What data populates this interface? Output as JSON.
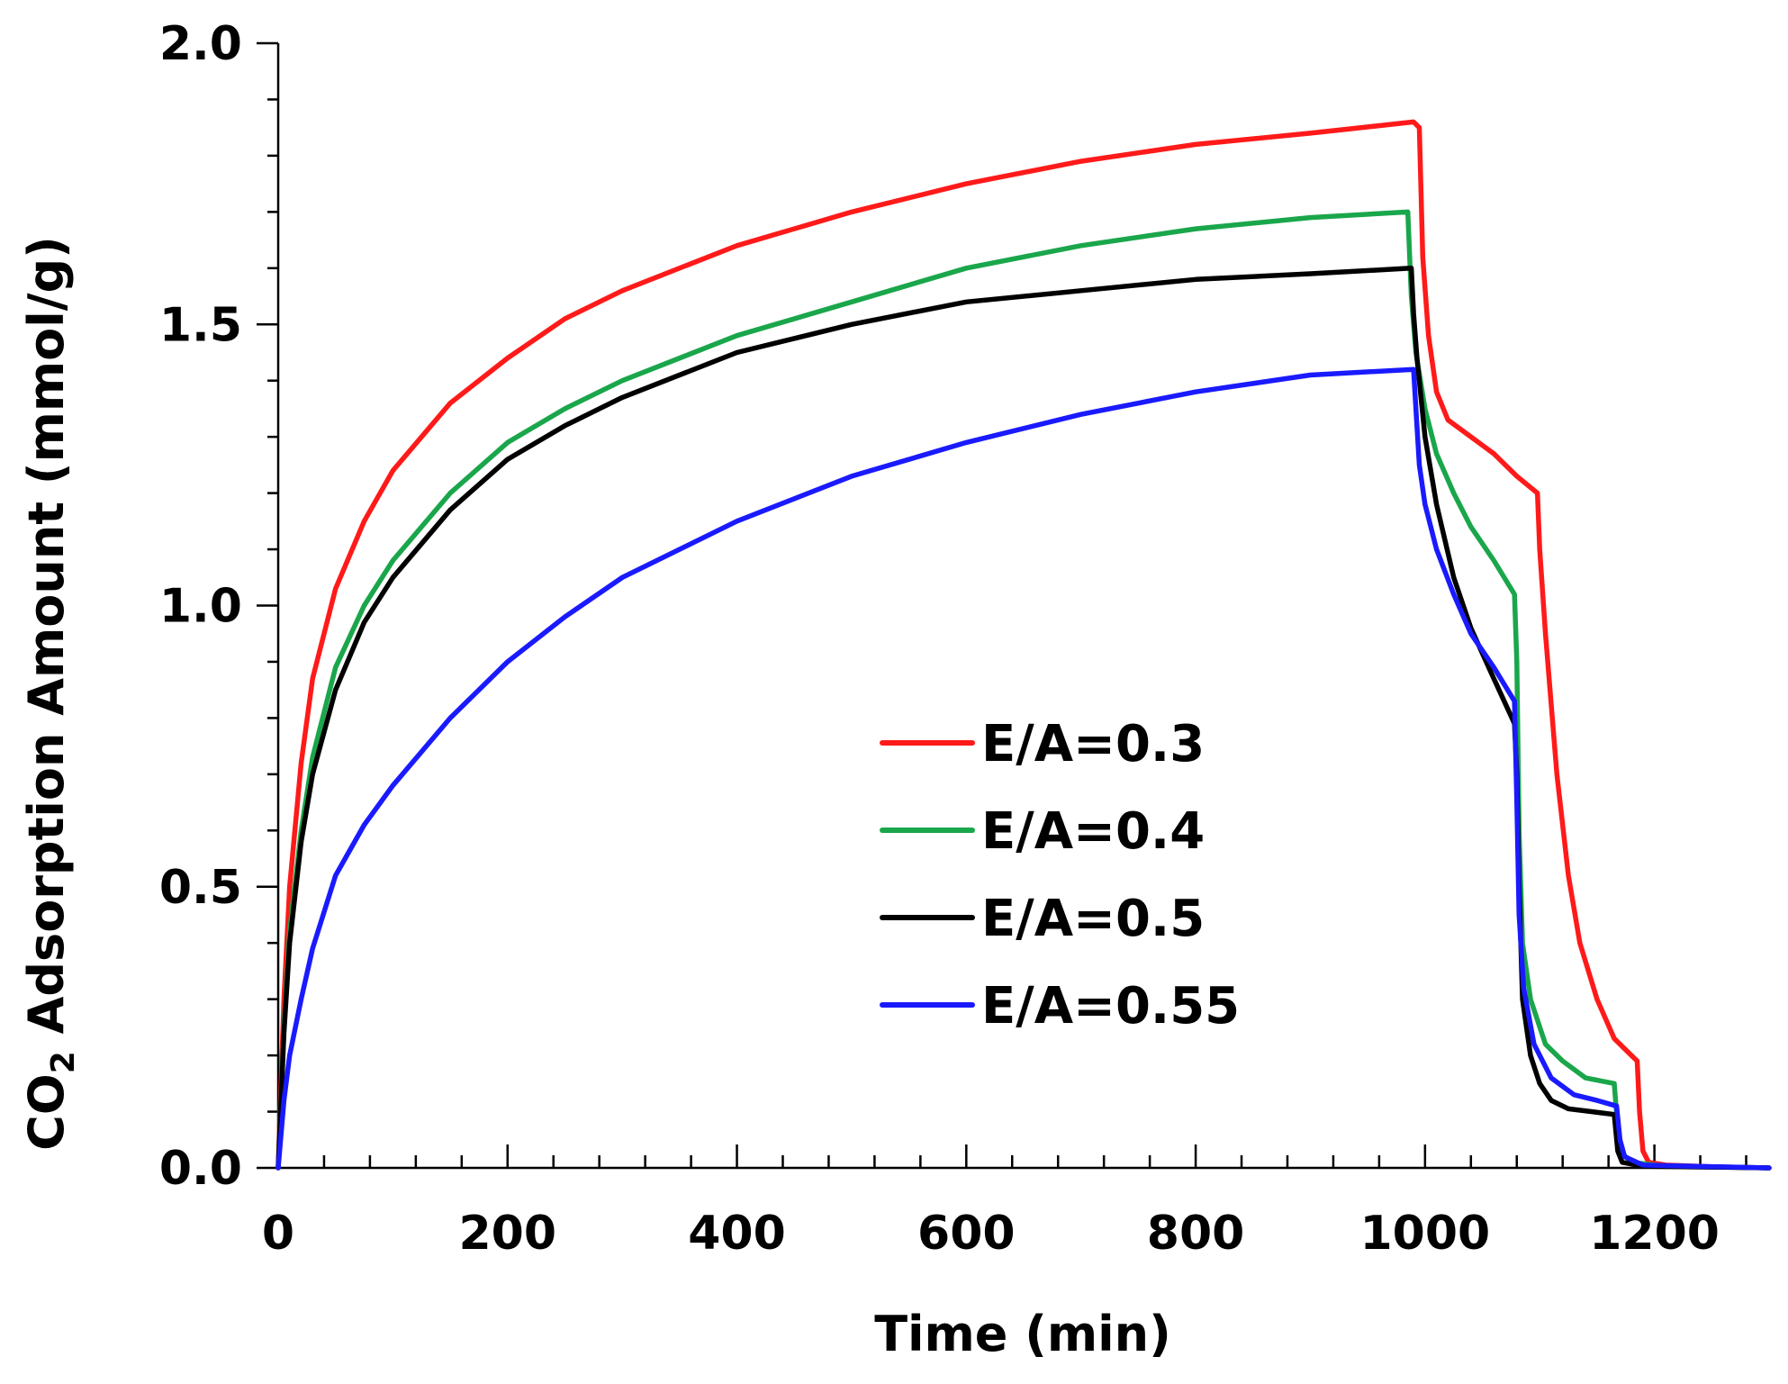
{
  "chart_data": {
    "type": "line",
    "title": "",
    "xlabel": "Time (min)",
    "ylabel_main": "CO",
    "ylabel_sub": "2",
    "ylabel_rest": " Adsorption Amount (mmol/g)",
    "xlim": [
      0,
      1300
    ],
    "ylim": [
      0,
      2.0
    ],
    "x_ticks": [
      0,
      200,
      400,
      600,
      800,
      1000,
      1200
    ],
    "x_tick_labels": [
      "0",
      "200",
      "400",
      "600",
      "800",
      "1000",
      "1200"
    ],
    "x_minor_step": 40,
    "y_ticks": [
      0,
      0.5,
      1.0,
      1.5,
      2.0
    ],
    "y_tick_labels": [
      "0.0",
      "0.5",
      "1.0",
      "1.5",
      "2.0"
    ],
    "y_minor_step": 0.1,
    "grid": false,
    "legend_position": "center-right",
    "series": [
      {
        "name": "E/A=0.3",
        "color": "#ff1a1a",
        "points": [
          [
            0,
            0
          ],
          [
            5,
            0.3
          ],
          [
            10,
            0.5
          ],
          [
            20,
            0.72
          ],
          [
            30,
            0.87
          ],
          [
            50,
            1.03
          ],
          [
            75,
            1.15
          ],
          [
            100,
            1.24
          ],
          [
            150,
            1.36
          ],
          [
            200,
            1.44
          ],
          [
            250,
            1.51
          ],
          [
            300,
            1.56
          ],
          [
            400,
            1.64
          ],
          [
            500,
            1.7
          ],
          [
            600,
            1.75
          ],
          [
            700,
            1.79
          ],
          [
            800,
            1.82
          ],
          [
            900,
            1.84
          ],
          [
            990,
            1.86
          ],
          [
            995,
            1.85
          ],
          [
            998,
            1.62
          ],
          [
            1003,
            1.48
          ],
          [
            1010,
            1.38
          ],
          [
            1020,
            1.33
          ],
          [
            1040,
            1.3
          ],
          [
            1060,
            1.27
          ],
          [
            1080,
            1.23
          ],
          [
            1098,
            1.2
          ],
          [
            1100,
            1.1
          ],
          [
            1105,
            0.95
          ],
          [
            1115,
            0.7
          ],
          [
            1125,
            0.52
          ],
          [
            1135,
            0.4
          ],
          [
            1150,
            0.3
          ],
          [
            1165,
            0.23
          ],
          [
            1180,
            0.2
          ],
          [
            1185,
            0.19
          ],
          [
            1187,
            0.1
          ],
          [
            1190,
            0.03
          ],
          [
            1195,
            0.01
          ],
          [
            1210,
            0.005
          ],
          [
            1250,
            0.002
          ],
          [
            1300,
            0.0
          ]
        ]
      },
      {
        "name": "E/A=0.4",
        "color": "#1aa64b",
        "points": [
          [
            0,
            0
          ],
          [
            5,
            0.25
          ],
          [
            10,
            0.42
          ],
          [
            20,
            0.6
          ],
          [
            30,
            0.73
          ],
          [
            50,
            0.89
          ],
          [
            75,
            1.0
          ],
          [
            100,
            1.08
          ],
          [
            150,
            1.2
          ],
          [
            200,
            1.29
          ],
          [
            250,
            1.35
          ],
          [
            300,
            1.4
          ],
          [
            400,
            1.48
          ],
          [
            500,
            1.54
          ],
          [
            600,
            1.6
          ],
          [
            700,
            1.64
          ],
          [
            800,
            1.67
          ],
          [
            900,
            1.69
          ],
          [
            985,
            1.7
          ],
          [
            988,
            1.55
          ],
          [
            992,
            1.45
          ],
          [
            1000,
            1.35
          ],
          [
            1010,
            1.27
          ],
          [
            1025,
            1.2
          ],
          [
            1040,
            1.14
          ],
          [
            1060,
            1.08
          ],
          [
            1078,
            1.02
          ],
          [
            1080,
            0.9
          ],
          [
            1082,
            0.6
          ],
          [
            1085,
            0.4
          ],
          [
            1092,
            0.3
          ],
          [
            1105,
            0.22
          ],
          [
            1120,
            0.19
          ],
          [
            1140,
            0.16
          ],
          [
            1165,
            0.15
          ],
          [
            1168,
            0.07
          ],
          [
            1170,
            0.03
          ],
          [
            1180,
            0.01
          ],
          [
            1210,
            0.003
          ],
          [
            1300,
            0.0
          ]
        ]
      },
      {
        "name": "E/A=0.5",
        "color": "#000000",
        "points": [
          [
            0,
            0
          ],
          [
            5,
            0.24
          ],
          [
            10,
            0.4
          ],
          [
            20,
            0.58
          ],
          [
            30,
            0.7
          ],
          [
            50,
            0.85
          ],
          [
            75,
            0.97
          ],
          [
            100,
            1.05
          ],
          [
            150,
            1.17
          ],
          [
            200,
            1.26
          ],
          [
            250,
            1.32
          ],
          [
            300,
            1.37
          ],
          [
            400,
            1.45
          ],
          [
            500,
            1.5
          ],
          [
            600,
            1.54
          ],
          [
            700,
            1.56
          ],
          [
            800,
            1.58
          ],
          [
            900,
            1.59
          ],
          [
            988,
            1.6
          ],
          [
            990,
            1.52
          ],
          [
            993,
            1.44
          ],
          [
            1000,
            1.3
          ],
          [
            1010,
            1.18
          ],
          [
            1025,
            1.05
          ],
          [
            1040,
            0.96
          ],
          [
            1060,
            0.87
          ],
          [
            1078,
            0.79
          ],
          [
            1080,
            0.7
          ],
          [
            1082,
            0.5
          ],
          [
            1085,
            0.3
          ],
          [
            1092,
            0.2
          ],
          [
            1100,
            0.15
          ],
          [
            1110,
            0.12
          ],
          [
            1125,
            0.105
          ],
          [
            1145,
            0.1
          ],
          [
            1165,
            0.095
          ],
          [
            1168,
            0.03
          ],
          [
            1172,
            0.01
          ],
          [
            1190,
            0.003
          ],
          [
            1300,
            0.0
          ]
        ]
      },
      {
        "name": "E/A=0.55",
        "color": "#1a1aff",
        "points": [
          [
            0,
            0
          ],
          [
            5,
            0.12
          ],
          [
            10,
            0.2
          ],
          [
            20,
            0.3
          ],
          [
            30,
            0.39
          ],
          [
            50,
            0.52
          ],
          [
            75,
            0.61
          ],
          [
            100,
            0.68
          ],
          [
            150,
            0.8
          ],
          [
            200,
            0.9
          ],
          [
            250,
            0.98
          ],
          [
            300,
            1.05
          ],
          [
            400,
            1.15
          ],
          [
            500,
            1.23
          ],
          [
            600,
            1.29
          ],
          [
            700,
            1.34
          ],
          [
            800,
            1.38
          ],
          [
            900,
            1.41
          ],
          [
            990,
            1.42
          ],
          [
            992,
            1.35
          ],
          [
            995,
            1.25
          ],
          [
            1000,
            1.18
          ],
          [
            1010,
            1.1
          ],
          [
            1025,
            1.02
          ],
          [
            1040,
            0.95
          ],
          [
            1060,
            0.89
          ],
          [
            1078,
            0.83
          ],
          [
            1080,
            0.65
          ],
          [
            1082,
            0.45
          ],
          [
            1086,
            0.32
          ],
          [
            1095,
            0.22
          ],
          [
            1110,
            0.16
          ],
          [
            1130,
            0.13
          ],
          [
            1150,
            0.12
          ],
          [
            1167,
            0.11
          ],
          [
            1170,
            0.05
          ],
          [
            1174,
            0.02
          ],
          [
            1190,
            0.005
          ],
          [
            1300,
            0.0
          ]
        ]
      }
    ]
  }
}
